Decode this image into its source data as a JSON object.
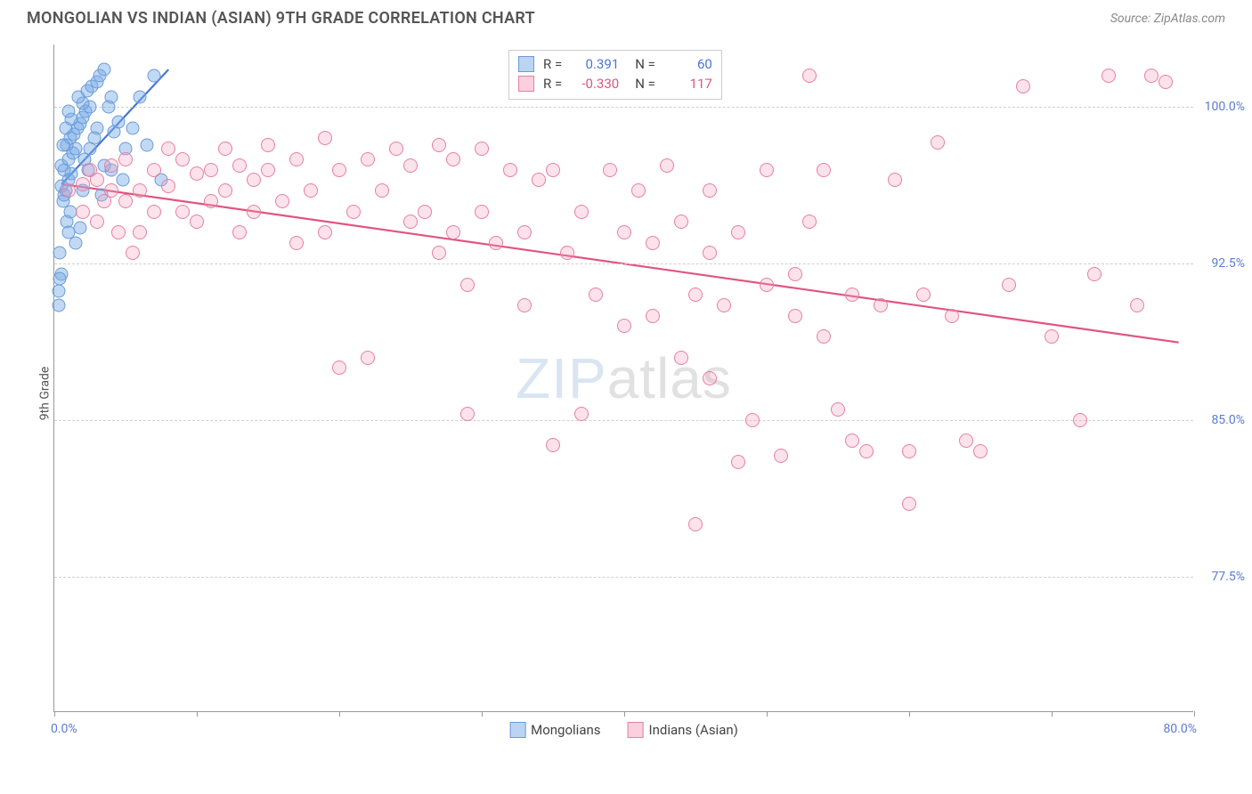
{
  "title": "MONGOLIAN VS INDIAN (ASIAN) 9TH GRADE CORRELATION CHART",
  "source": "Source: ZipAtlas.com",
  "ylabel": "9th Grade",
  "watermark_bold": "ZIP",
  "watermark_thin": "atlas",
  "chart": {
    "type": "scatter",
    "xlim": [
      0,
      80
    ],
    "ylim": [
      71,
      103
    ],
    "xticks": [
      0,
      10,
      20,
      30,
      40,
      50,
      60,
      70,
      80
    ],
    "xticks_labeled": {
      "0": "0.0%",
      "80": "80.0%"
    },
    "yticks": [
      77.5,
      85.0,
      92.5,
      100.0
    ],
    "ytick_labels": [
      "77.5%",
      "85.0%",
      "92.5%",
      "100.0%"
    ],
    "background_color": "#ffffff",
    "grid_color": "#d0d0d0",
    "axis_color": "#999999",
    "tick_label_color": "#5b7bd5",
    "series": [
      {
        "name": "Mongolians",
        "color_fill": "rgba(120,170,230,0.45)",
        "color_stroke": "#6a9bd8",
        "marker_size": 15,
        "R": 0.391,
        "N": 60,
        "trend": {
          "x1": 0.5,
          "y1": 96.3,
          "x2": 8.0,
          "y2": 101.8,
          "color": "#4a76d4",
          "width": 2.2
        },
        "points": [
          [
            0.3,
            91.2
          ],
          [
            0.5,
            92.0
          ],
          [
            0.4,
            93.0
          ],
          [
            0.6,
            95.5
          ],
          [
            0.8,
            96.0
          ],
          [
            1.0,
            96.5
          ],
          [
            1.2,
            96.8
          ],
          [
            0.7,
            97.0
          ],
          [
            0.5,
            97.2
          ],
          [
            1.0,
            97.5
          ],
          [
            1.3,
            97.8
          ],
          [
            1.5,
            98.0
          ],
          [
            0.9,
            98.2
          ],
          [
            1.1,
            98.5
          ],
          [
            1.4,
            98.7
          ],
          [
            1.6,
            99.0
          ],
          [
            1.8,
            99.2
          ],
          [
            2.0,
            99.5
          ],
          [
            2.2,
            99.8
          ],
          [
            2.5,
            100.0
          ],
          [
            2.0,
            100.2
          ],
          [
            1.7,
            100.5
          ],
          [
            2.3,
            100.8
          ],
          [
            2.6,
            101.0
          ],
          [
            3.0,
            101.2
          ],
          [
            3.2,
            101.5
          ],
          [
            3.5,
            101.8
          ],
          [
            3.8,
            100.0
          ],
          [
            4.0,
            100.5
          ],
          [
            4.2,
            98.8
          ],
          [
            4.5,
            99.3
          ],
          [
            3.0,
            99.0
          ],
          [
            2.8,
            98.5
          ],
          [
            2.5,
            98.0
          ],
          [
            1.2,
            99.4
          ],
          [
            1.0,
            99.8
          ],
          [
            0.8,
            99.0
          ],
          [
            0.6,
            98.2
          ],
          [
            2.1,
            97.5
          ],
          [
            2.4,
            97.0
          ],
          [
            0.5,
            96.2
          ],
          [
            0.7,
            95.8
          ],
          [
            0.9,
            94.5
          ],
          [
            1.1,
            95.0
          ],
          [
            5.0,
            98.0
          ],
          [
            5.5,
            99.0
          ],
          [
            6.0,
            100.5
          ],
          [
            7.0,
            101.5
          ],
          [
            7.5,
            96.5
          ],
          [
            4.0,
            97.0
          ],
          [
            1.0,
            94.0
          ],
          [
            1.5,
            93.5
          ],
          [
            1.8,
            94.2
          ],
          [
            3.5,
            97.2
          ],
          [
            2.0,
            96.0
          ],
          [
            0.4,
            91.8
          ],
          [
            0.3,
            90.5
          ],
          [
            6.5,
            98.2
          ],
          [
            4.8,
            96.5
          ],
          [
            3.3,
            95.8
          ]
        ]
      },
      {
        "name": "Indians (Asian)",
        "color_fill": "rgba(245,160,190,0.30)",
        "color_stroke": "#e77fa3",
        "marker_size": 16,
        "R": -0.33,
        "N": 117,
        "trend": {
          "x1": 0.5,
          "y1": 96.3,
          "x2": 79,
          "y2": 88.7,
          "color": "#e0557e",
          "width": 2.2
        },
        "points": [
          [
            1,
            96.0
          ],
          [
            2,
            96.3
          ],
          [
            2,
            95.0
          ],
          [
            2.5,
            97.0
          ],
          [
            3,
            96.5
          ],
          [
            3,
            94.5
          ],
          [
            3.5,
            95.5
          ],
          [
            4,
            96.0
          ],
          [
            4,
            97.2
          ],
          [
            4.5,
            94.0
          ],
          [
            5,
            95.5
          ],
          [
            5,
            97.5
          ],
          [
            5.5,
            93.0
          ],
          [
            6,
            96.0
          ],
          [
            6,
            94.0
          ],
          [
            7,
            97.0
          ],
          [
            7,
            95.0
          ],
          [
            8,
            98.0
          ],
          [
            8,
            96.2
          ],
          [
            9,
            95.0
          ],
          [
            9,
            97.5
          ],
          [
            10,
            96.8
          ],
          [
            10,
            94.5
          ],
          [
            11,
            97.0
          ],
          [
            11,
            95.5
          ],
          [
            12,
            98.0
          ],
          [
            12,
            96.0
          ],
          [
            13,
            97.2
          ],
          [
            13,
            94.0
          ],
          [
            14,
            96.5
          ],
          [
            14,
            95.0
          ],
          [
            15,
            97.0
          ],
          [
            15,
            98.2
          ],
          [
            16,
            95.5
          ],
          [
            17,
            97.5
          ],
          [
            17,
            93.5
          ],
          [
            18,
            96.0
          ],
          [
            19,
            98.5
          ],
          [
            19,
            94.0
          ],
          [
            20,
            97.0
          ],
          [
            20,
            87.5
          ],
          [
            21,
            95.0
          ],
          [
            22,
            97.5
          ],
          [
            22,
            88.0
          ],
          [
            23,
            96.0
          ],
          [
            24,
            98.0
          ],
          [
            25,
            94.5
          ],
          [
            25,
            97.2
          ],
          [
            26,
            95.0
          ],
          [
            27,
            98.2
          ],
          [
            27,
            93.0
          ],
          [
            28,
            94.0
          ],
          [
            28,
            97.5
          ],
          [
            29,
            85.3
          ],
          [
            29,
            91.5
          ],
          [
            30,
            98.0
          ],
          [
            30,
            95.0
          ],
          [
            31,
            93.5
          ],
          [
            32,
            97.0
          ],
          [
            33,
            94.0
          ],
          [
            33,
            90.5
          ],
          [
            34,
            96.5
          ],
          [
            35,
            97.0
          ],
          [
            35,
            83.8
          ],
          [
            36,
            93.0
          ],
          [
            37,
            95.0
          ],
          [
            37,
            85.3
          ],
          [
            38,
            91.0
          ],
          [
            39,
            97.0
          ],
          [
            40,
            94.0
          ],
          [
            40,
            89.5
          ],
          [
            41,
            96.0
          ],
          [
            42,
            93.5
          ],
          [
            42,
            90.0
          ],
          [
            43,
            97.2
          ],
          [
            44,
            94.5
          ],
          [
            44,
            88.0
          ],
          [
            45,
            91.0
          ],
          [
            45,
            80.0
          ],
          [
            46,
            96.0
          ],
          [
            46,
            93.0
          ],
          [
            47,
            90.5
          ],
          [
            48,
            94.0
          ],
          [
            48,
            83.0
          ],
          [
            49,
            85.0
          ],
          [
            50,
            91.5
          ],
          [
            50,
            97.0
          ],
          [
            51,
            83.3
          ],
          [
            52,
            90.0
          ],
          [
            53,
            101.5
          ],
          [
            53,
            94.5
          ],
          [
            54,
            97.0
          ],
          [
            54,
            89.0
          ],
          [
            55,
            85.5
          ],
          [
            56,
            91.0
          ],
          [
            56,
            84.0
          ],
          [
            57,
            83.5
          ],
          [
            58,
            90.5
          ],
          [
            59,
            96.5
          ],
          [
            60,
            83.5
          ],
          [
            60,
            81.0
          ],
          [
            61,
            91.0
          ],
          [
            62,
            98.3
          ],
          [
            63,
            90.0
          ],
          [
            64,
            84.0
          ],
          [
            65,
            83.5
          ],
          [
            67,
            91.5
          ],
          [
            68,
            101.0
          ],
          [
            70,
            89.0
          ],
          [
            72,
            85.0
          ],
          [
            73,
            92.0
          ],
          [
            74,
            101.5
          ],
          [
            76,
            90.5
          ],
          [
            77,
            101.5
          ],
          [
            78,
            101.2
          ],
          [
            52,
            92.0
          ],
          [
            46,
            87.0
          ]
        ]
      }
    ],
    "legend_in_plot": {
      "rows": [
        {
          "swatch": "blue",
          "r_label": "R =",
          "r_val": "0.391",
          "r_class": "val-blue",
          "n_label": "N =",
          "n_val": "60"
        },
        {
          "swatch": "pink",
          "r_label": "R =",
          "r_val": "-0.330",
          "r_class": "val-pink",
          "n_label": "N =",
          "n_val": "117"
        }
      ]
    },
    "bottom_legend": [
      {
        "swatch": "blue",
        "label": "Mongolians"
      },
      {
        "swatch": "pink",
        "label": "Indians (Asian)"
      }
    ]
  }
}
